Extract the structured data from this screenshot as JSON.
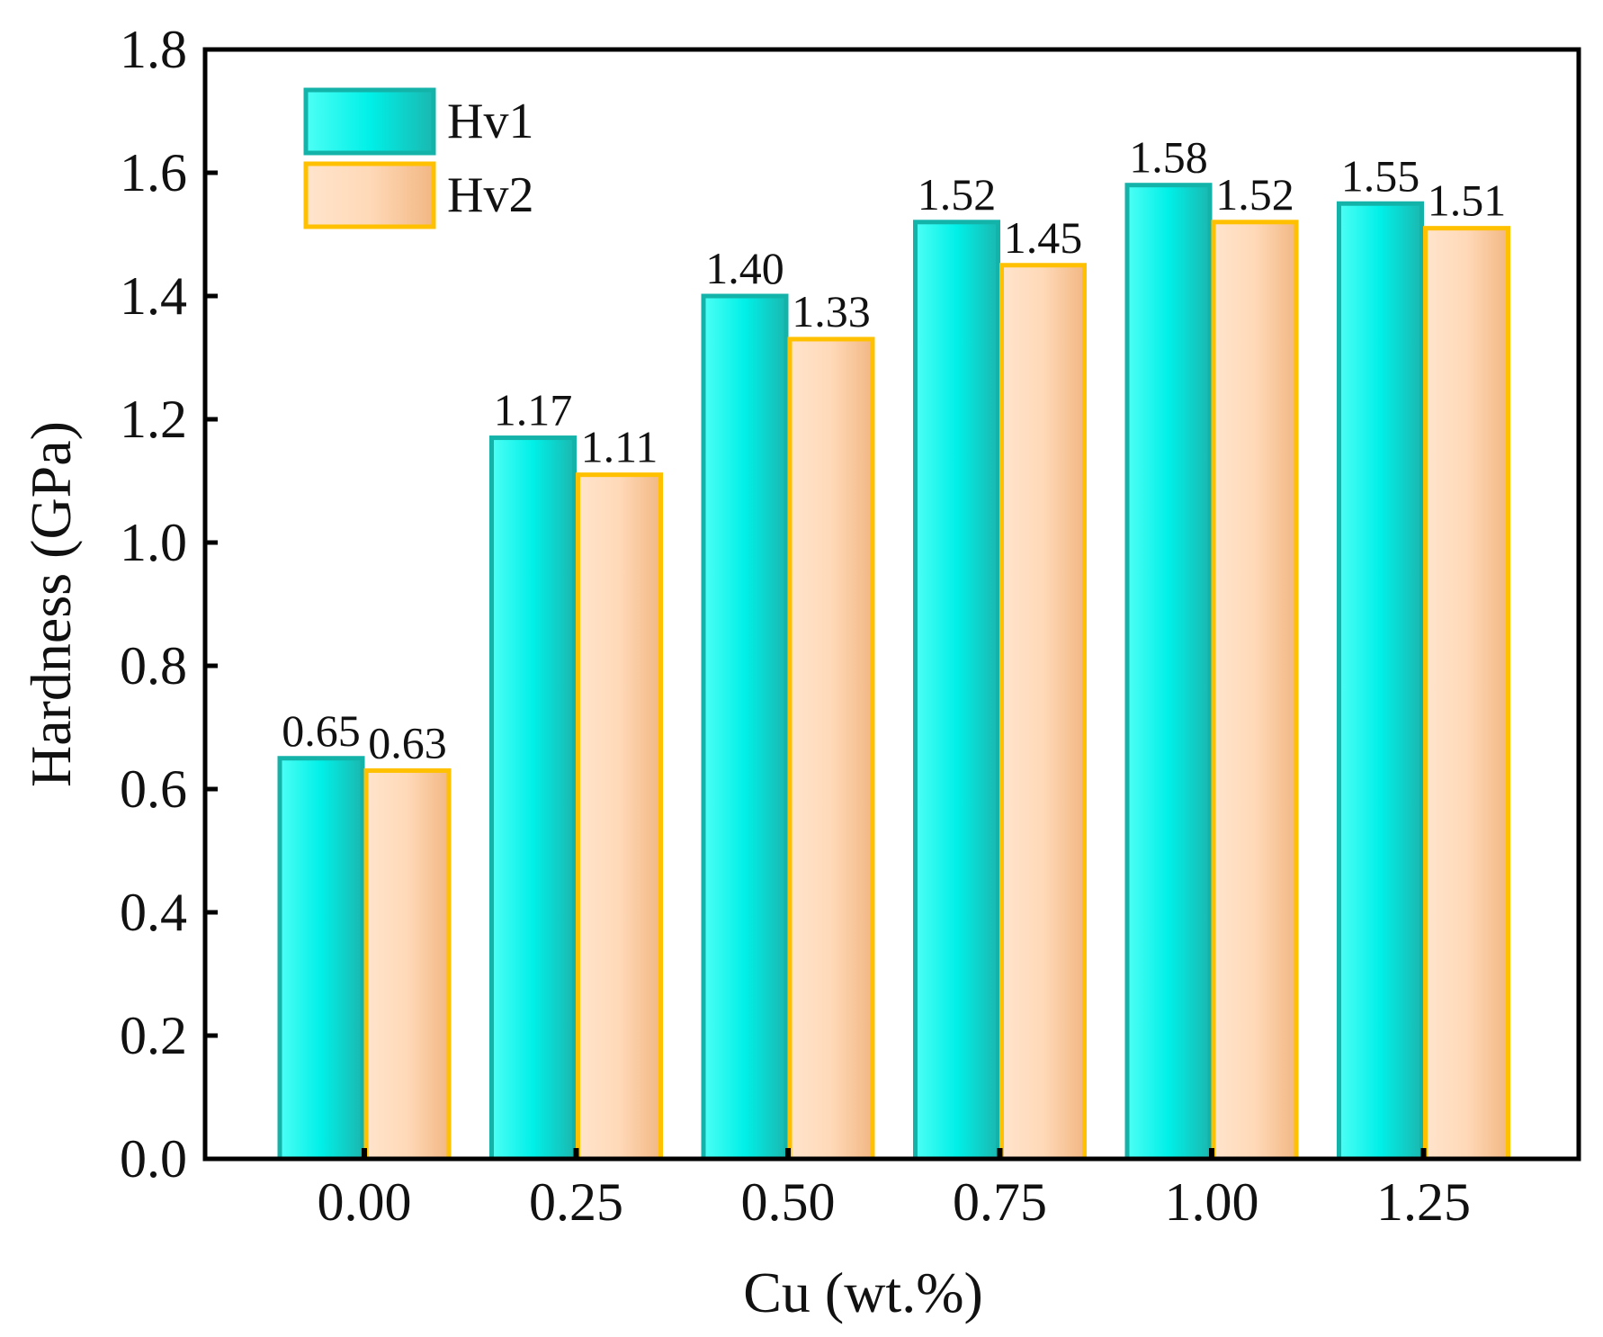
{
  "chart_data": {
    "type": "bar",
    "title": "",
    "xlabel": "Cu (wt.%)",
    "ylabel": "Hardness (GPa)",
    "categories": [
      "0.00",
      "0.25",
      "0.50",
      "0.75",
      "1.00",
      "1.25"
    ],
    "ylim": [
      0.0,
      1.8
    ],
    "yticks": [
      "0.0",
      "0.2",
      "0.4",
      "0.6",
      "0.8",
      "1.0",
      "1.2",
      "1.4",
      "1.6",
      "1.8"
    ],
    "grid": false,
    "legend_position": "top-left",
    "series": [
      {
        "name": "Hv1",
        "values": [
          0.65,
          1.17,
          1.4,
          1.52,
          1.58,
          1.55
        ],
        "labels": [
          "0.65",
          "1.17",
          "1.40",
          "1.52",
          "1.58",
          "1.55"
        ],
        "fill_light": "#4dfff5",
        "fill_dark": "#1ab8b0",
        "fill": "#00f0e8",
        "stroke": "#14b3aa"
      },
      {
        "name": "Hv2",
        "values": [
          0.63,
          1.11,
          1.33,
          1.45,
          1.52,
          1.51
        ],
        "labels": [
          "0.63",
          "1.11",
          "1.33",
          "1.45",
          "1.52",
          "1.51"
        ],
        "fill_light": "#ffe4cc",
        "fill_dark": "#f2b783",
        "fill": "#ffd9b8",
        "stroke": "#ffc000"
      }
    ]
  }
}
